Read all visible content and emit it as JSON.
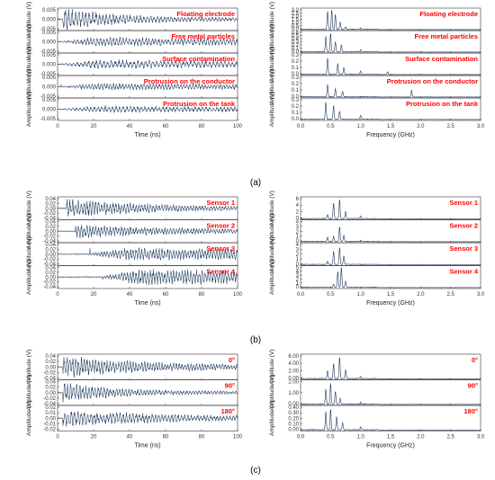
{
  "colors": {
    "signal": "#1f3a5f",
    "annotation": "#ff0000",
    "axis": "#333333"
  },
  "panel_labels": [
    "(a)",
    "(b)",
    "(c)"
  ],
  "chart_data": [
    {
      "id": "a-time",
      "type": "line",
      "panel": "(a)",
      "domain": "time",
      "xlabel": "Time (ns)",
      "ylabel": "Amplitude (V)",
      "xlim": [
        0,
        100
      ],
      "xticks": [
        "0",
        "20",
        "40",
        "60",
        "80",
        "100"
      ],
      "subplots": [
        {
          "annotation": "Floating electrode",
          "ylim": [
            -0.005,
            0.005
          ],
          "yticks": [
            "0.005",
            "0.000",
            "-0.005"
          ],
          "profile": {
            "peak": 0.0045,
            "onset": 3,
            "decay": 0.03,
            "period": 1.9
          }
        },
        {
          "annotation": "Free metal particles",
          "ylim": [
            -0.005,
            0.005
          ],
          "yticks": [
            "0.005",
            "0.000",
            "-0.005"
          ],
          "profile": {
            "peak": 0.002,
            "onset": 2,
            "decay": 0.006,
            "period": 1.8
          }
        },
        {
          "annotation": "Surface contamination",
          "ylim": [
            -0.005,
            0.005
          ],
          "yticks": [
            "0.005",
            "0.000",
            "-0.005"
          ],
          "profile": {
            "peak": 0.002,
            "onset": 2,
            "decay": 0.004,
            "period": 2.1
          }
        },
        {
          "annotation": "Protrusion on the conductor",
          "ylim": [
            -0.005,
            0.005
          ],
          "yticks": [
            "0.005",
            "0.000",
            "-0.005"
          ],
          "profile": {
            "peak": 0.0015,
            "onset": 2,
            "decay": 0.002,
            "period": 1.7
          }
        },
        {
          "annotation": "Protrusion on the tank",
          "ylim": [
            -0.005,
            0.005
          ],
          "yticks": [
            "0.005",
            "0.000",
            "-0.005"
          ],
          "profile": {
            "peak": 0.0015,
            "onset": 2,
            "decay": 0.002,
            "period": 2.0
          }
        }
      ]
    },
    {
      "id": "a-freq",
      "type": "line",
      "panel": "(a)",
      "domain": "frequency",
      "xlabel": "Frequency (GHz)",
      "ylabel": "Amplitude (V)",
      "xlim": [
        0,
        3
      ],
      "xticks": [
        "0.0",
        "0.5",
        "1.0",
        "1.5",
        "2.0",
        "2.5",
        "3.0"
      ],
      "subplots": [
        {
          "annotation": "Floating electrode",
          "ylim": [
            0,
            3.0
          ],
          "yticks": [
            "3.0",
            "2.5",
            "2.0",
            "1.5",
            "1.0",
            "0.5",
            "0.0"
          ],
          "peaks": [
            {
              "x": 0.45,
              "y": 2.6
            },
            {
              "x": 0.52,
              "y": 2.9
            },
            {
              "x": 0.58,
              "y": 2.2
            },
            {
              "x": 0.66,
              "y": 1.1
            },
            {
              "x": 0.75,
              "y": 0.4
            },
            {
              "x": 1.0,
              "y": 0.2
            }
          ]
        },
        {
          "annotation": "Free metal particles",
          "ylim": [
            0,
            0.6
          ],
          "yticks": [
            "0.6",
            "0.5",
            "0.4",
            "0.3",
            "0.2",
            "0.1",
            "0.0"
          ],
          "peaks": [
            {
              "x": 0.42,
              "y": 0.45
            },
            {
              "x": 0.5,
              "y": 0.55
            },
            {
              "x": 0.58,
              "y": 0.3
            },
            {
              "x": 0.68,
              "y": 0.2
            },
            {
              "x": 1.0,
              "y": 0.06
            }
          ]
        },
        {
          "annotation": "Surface contamination",
          "ylim": [
            0,
            0.3
          ],
          "yticks": [
            "0.3",
            "0.2",
            "0.1",
            "0.0"
          ],
          "peaks": [
            {
              "x": 0.45,
              "y": 0.24
            },
            {
              "x": 0.62,
              "y": 0.16
            },
            {
              "x": 0.72,
              "y": 0.1
            },
            {
              "x": 1.0,
              "y": 0.05
            },
            {
              "x": 1.45,
              "y": 0.04
            }
          ]
        },
        {
          "annotation": "Protrusion on the conductor",
          "ylim": [
            0,
            0.3
          ],
          "yticks": [
            "0.3",
            "0.2",
            "0.1",
            "0.0"
          ],
          "peaks": [
            {
              "x": 0.45,
              "y": 0.18
            },
            {
              "x": 0.58,
              "y": 0.12
            },
            {
              "x": 0.7,
              "y": 0.08
            },
            {
              "x": 1.85,
              "y": 0.1
            }
          ]
        },
        {
          "annotation": "Protrusion on the tank",
          "ylim": [
            0,
            0.3
          ],
          "yticks": [
            "0.3",
            "0.2",
            "0.1",
            "0.0"
          ],
          "peaks": [
            {
              "x": 0.42,
              "y": 0.25
            },
            {
              "x": 0.55,
              "y": 0.2
            },
            {
              "x": 0.65,
              "y": 0.12
            },
            {
              "x": 1.0,
              "y": 0.06
            }
          ]
        }
      ]
    },
    {
      "id": "b-time",
      "type": "line",
      "panel": "(b)",
      "domain": "time",
      "xlabel": "Time (ns)",
      "ylabel": "Amplitude (V)",
      "xlim": [
        0,
        100
      ],
      "xticks": [
        "0",
        "20",
        "40",
        "60",
        "80",
        "100"
      ],
      "subplots": [
        {
          "annotation": "Sensor 1",
          "ylim": [
            -0.04,
            0.04
          ],
          "yticks": [
            "0.04",
            "0.02",
            "0.00",
            "-0.02",
            "-0.04"
          ],
          "profile": {
            "peak": 0.03,
            "onset": 5,
            "decay": 0.02,
            "period": 1.6
          }
        },
        {
          "annotation": "Sensor 2",
          "ylim": [
            -0.04,
            0.04
          ],
          "yticks": [
            "0.04",
            "0.02",
            "0.00",
            "-0.02",
            "-0.04"
          ],
          "profile": {
            "peak": 0.022,
            "onset": 10,
            "decay": 0.015,
            "period": 1.6
          }
        },
        {
          "annotation": "Sensor 3",
          "ylim": [
            -0.04,
            0.04
          ],
          "yticks": [
            "0.04",
            "0.02",
            "0.00",
            "-0.02",
            "-0.04"
          ],
          "profile": {
            "peak": 0.022,
            "onset": 18,
            "decay": 0.01,
            "period": 1.6
          }
        },
        {
          "annotation": "Sensor 4",
          "ylim": [
            -0.04,
            0.04
          ],
          "yticks": [
            "0.04",
            "0.02",
            "0.00",
            "-0.02",
            "-0.04"
          ],
          "profile": {
            "peak": 0.028,
            "onset": 25,
            "decay": 0.008,
            "period": 1.6
          }
        }
      ]
    },
    {
      "id": "b-freq",
      "type": "line",
      "panel": "(b)",
      "domain": "frequency",
      "xlabel": "Frequency (GHz)",
      "ylabel": "Amplitude (V)",
      "xlim": [
        0,
        3
      ],
      "xticks": [
        "0.0",
        "0.5",
        "1.0",
        "1.5",
        "2.0",
        "2.5",
        "3.0"
      ],
      "subplots": [
        {
          "annotation": "Sensor 1",
          "ylim": [
            0,
            6
          ],
          "yticks": [
            "6",
            "4",
            "2",
            "0"
          ],
          "peaks": [
            {
              "x": 0.45,
              "y": 1.2
            },
            {
              "x": 0.55,
              "y": 4.5
            },
            {
              "x": 0.65,
              "y": 5.5
            },
            {
              "x": 0.75,
              "y": 2.0
            },
            {
              "x": 1.0,
              "y": 0.8
            }
          ]
        },
        {
          "annotation": "Sensor 2",
          "ylim": [
            0,
            4
          ],
          "yticks": [
            "4",
            "3",
            "2",
            "1",
            "0"
          ],
          "peaks": [
            {
              "x": 0.45,
              "y": 0.8
            },
            {
              "x": 0.55,
              "y": 1.0
            },
            {
              "x": 0.65,
              "y": 2.8
            },
            {
              "x": 0.72,
              "y": 1.2
            },
            {
              "x": 1.0,
              "y": 0.3
            }
          ]
        },
        {
          "annotation": "Sensor 3",
          "ylim": [
            0,
            4
          ],
          "yticks": [
            "4",
            "3",
            "2",
            "1",
            "0"
          ],
          "peaks": [
            {
              "x": 0.45,
              "y": 0.6
            },
            {
              "x": 0.55,
              "y": 2.5
            },
            {
              "x": 0.65,
              "y": 3.2
            },
            {
              "x": 0.72,
              "y": 1.6
            }
          ]
        },
        {
          "annotation": "Sensor 4",
          "ylim": [
            0,
            5
          ],
          "yticks": [
            "5",
            "4",
            "3",
            "2",
            "1",
            "0"
          ],
          "peaks": [
            {
              "x": 0.55,
              "y": 0.8
            },
            {
              "x": 0.62,
              "y": 3.8
            },
            {
              "x": 0.68,
              "y": 4.8
            },
            {
              "x": 0.75,
              "y": 1.5
            }
          ]
        }
      ]
    },
    {
      "id": "c-time",
      "type": "line",
      "panel": "(c)",
      "domain": "time",
      "xlabel": "Time (ns)",
      "ylabel": "Amplitude (V)",
      "xlim": [
        0,
        100
      ],
      "xticks": [
        "0",
        "20",
        "40",
        "60",
        "80",
        "100"
      ],
      "subplots": [
        {
          "annotation": "0°",
          "ylim": [
            -0.04,
            0.04
          ],
          "yticks": [
            "0.04",
            "0.02",
            "0.00",
            "-0.02",
            "-0.04"
          ],
          "profile": {
            "peak": 0.032,
            "onset": 3,
            "decay": 0.02,
            "period": 1.6
          }
        },
        {
          "annotation": "90°",
          "ylim": [
            -0.04,
            0.04
          ],
          "yticks": [
            "0.04",
            "0.02",
            "0.00",
            "-0.02",
            "-0.04"
          ],
          "profile": {
            "peak": 0.03,
            "onset": 3,
            "decay": 0.035,
            "period": 1.7
          }
        },
        {
          "annotation": "180°",
          "ylim": [
            -0.02,
            0.02
          ],
          "yticks": [
            "0.02",
            "0.01",
            "0.00",
            "-0.01",
            "-0.02"
          ],
          "profile": {
            "peak": 0.012,
            "onset": 3,
            "decay": 0.015,
            "period": 1.8
          }
        }
      ]
    },
    {
      "id": "c-freq",
      "type": "line",
      "panel": "(c)",
      "domain": "frequency",
      "xlabel": "Frequency (GHz)",
      "ylabel": "Amplitude (V)",
      "xlim": [
        0,
        3
      ],
      "xticks": [
        "0.0",
        "0.5",
        "1.0",
        "1.5",
        "2.0",
        "2.5",
        "3.0"
      ],
      "subplots": [
        {
          "annotation": "0°",
          "ylim": [
            0,
            6
          ],
          "yticks": [
            "6.00",
            "4.00",
            "2.00",
            "0.00"
          ],
          "peaks": [
            {
              "x": 0.45,
              "y": 2.0
            },
            {
              "x": 0.55,
              "y": 3.8
            },
            {
              "x": 0.65,
              "y": 5.5
            },
            {
              "x": 0.75,
              "y": 2.2
            },
            {
              "x": 1.0,
              "y": 0.6
            }
          ]
        },
        {
          "annotation": "90°",
          "ylim": [
            0,
            2.5
          ],
          "yticks": [
            "2.00",
            "1.00",
            "0.00"
          ],
          "peaks": [
            {
              "x": 0.42,
              "y": 1.6
            },
            {
              "x": 0.5,
              "y": 2.2
            },
            {
              "x": 0.58,
              "y": 1.4
            },
            {
              "x": 0.66,
              "y": 0.6
            },
            {
              "x": 1.0,
              "y": 0.2
            }
          ]
        },
        {
          "annotation": "180°",
          "ylim": [
            0,
            0.5
          ],
          "yticks": [
            "0.40",
            "0.30",
            "0.20",
            "0.10",
            "0.00"
          ],
          "peaks": [
            {
              "x": 0.42,
              "y": 0.38
            },
            {
              "x": 0.5,
              "y": 0.44
            },
            {
              "x": 0.6,
              "y": 0.28
            },
            {
              "x": 0.7,
              "y": 0.15
            },
            {
              "x": 1.0,
              "y": 0.06
            }
          ]
        }
      ]
    }
  ]
}
